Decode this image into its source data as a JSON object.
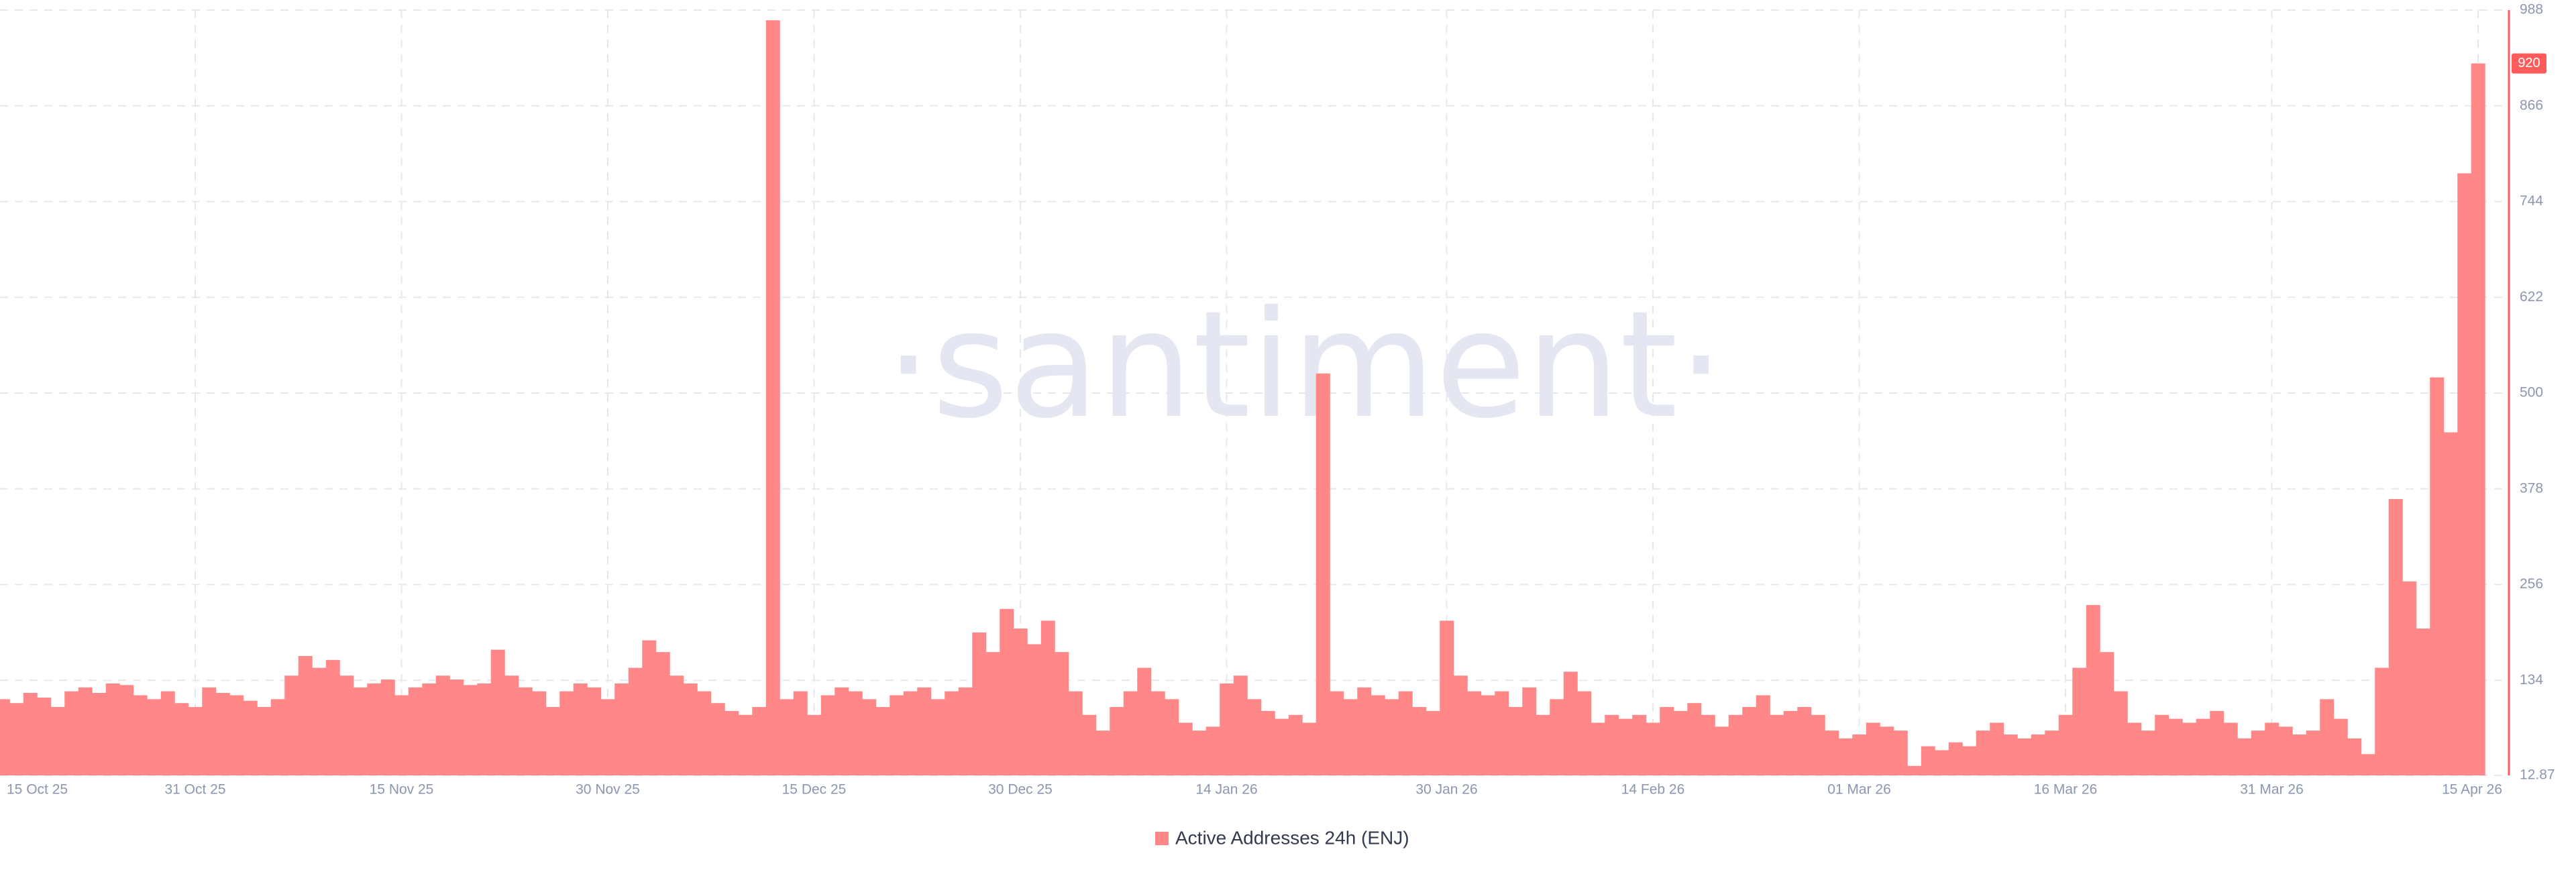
{
  "chart_data": {
    "type": "bar",
    "watermark": "·santiment·",
    "categories": [
      "15 Oct 25",
      null,
      null,
      null,
      null,
      null,
      null,
      null,
      null,
      null,
      null,
      null,
      null,
      null,
      null,
      null,
      "31 Oct 25",
      null,
      null,
      null,
      null,
      null,
      null,
      null,
      null,
      null,
      null,
      null,
      null,
      null,
      null,
      "15 Nov 25",
      null,
      null,
      null,
      null,
      null,
      null,
      null,
      null,
      null,
      null,
      null,
      null,
      null,
      null,
      "30 Nov 25",
      null,
      null,
      null,
      null,
      null,
      null,
      null,
      null,
      null,
      null,
      null,
      null,
      null,
      null,
      "15 Dec 25",
      null,
      null,
      null,
      null,
      null,
      null,
      null,
      null,
      null,
      null,
      null,
      null,
      null,
      null,
      "30 Dec 25",
      null,
      null,
      null,
      null,
      null,
      null,
      null,
      null,
      null,
      null,
      null,
      null,
      null,
      null,
      "14 Jan 26",
      null,
      null,
      null,
      null,
      null,
      null,
      null,
      null,
      null,
      null,
      null,
      null,
      null,
      null,
      null,
      "30 Jan 26",
      null,
      null,
      null,
      null,
      null,
      null,
      null,
      null,
      null,
      null,
      null,
      null,
      null,
      null,
      "14 Feb 26",
      null,
      null,
      null,
      null,
      null,
      null,
      null,
      null,
      null,
      null,
      null,
      null,
      null,
      null,
      "01 Mar 26",
      null,
      null,
      null,
      null,
      null,
      null,
      null,
      null,
      null,
      null,
      null,
      null,
      null,
      null,
      "16 Mar 26",
      null,
      null,
      null,
      null,
      null,
      null,
      null,
      null,
      null,
      null,
      null,
      null,
      null,
      null,
      "31 Mar 26",
      null,
      null,
      null,
      null,
      null,
      null,
      null,
      null,
      null,
      null,
      null,
      null,
      null,
      null,
      "15 Apr 26"
    ],
    "series": [
      {
        "name": "Active Addresses 24h (ENJ)",
        "color": "#ff8787",
        "axis": "y2",
        "values": [
          120,
          115,
          110,
          105,
          118,
          112,
          100,
          120,
          125,
          118,
          130,
          128,
          115,
          110,
          120,
          105,
          100,
          125,
          118,
          115,
          108,
          100,
          110,
          140,
          165,
          150,
          160,
          140,
          125,
          130,
          135,
          115,
          125,
          130,
          140,
          135,
          128,
          130,
          173,
          140,
          125,
          120,
          100,
          120,
          130,
          125,
          110,
          130,
          150,
          185,
          170,
          140,
          130,
          120,
          105,
          95,
          90,
          100,
          975,
          110,
          120,
          90,
          115,
          125,
          120,
          110,
          100,
          115,
          120,
          125,
          110,
          120,
          125,
          195,
          170,
          225,
          200,
          180,
          210,
          170,
          120,
          90,
          70,
          100,
          120,
          150,
          120,
          110,
          80,
          70,
          75,
          130,
          140,
          110,
          95,
          85,
          90,
          80,
          525,
          120,
          110,
          125,
          115,
          110,
          120,
          100,
          95,
          210,
          140,
          120,
          115,
          120,
          100,
          125,
          90,
          110,
          145,
          120,
          80,
          90,
          85,
          90,
          80,
          100,
          95,
          105,
          90,
          75,
          90,
          100,
          115,
          90,
          95,
          100,
          90,
          70,
          60,
          65,
          80,
          75,
          70,
          25,
          50,
          45,
          55,
          50,
          70,
          80,
          65,
          60,
          65,
          70,
          90,
          150,
          230,
          170,
          120,
          80,
          70,
          90,
          85,
          80,
          85,
          95,
          80,
          60,
          70,
          80,
          75,
          65,
          70,
          110,
          85,
          60,
          40,
          150,
          365,
          260,
          200,
          520,
          450,
          780,
          920
        ]
      }
    ],
    "y2lim": [
      12.87,
      988
    ],
    "y2ticks": [
      12.87,
      134,
      256,
      378,
      500,
      622,
      744,
      866,
      988
    ],
    "grid": true
  }
}
